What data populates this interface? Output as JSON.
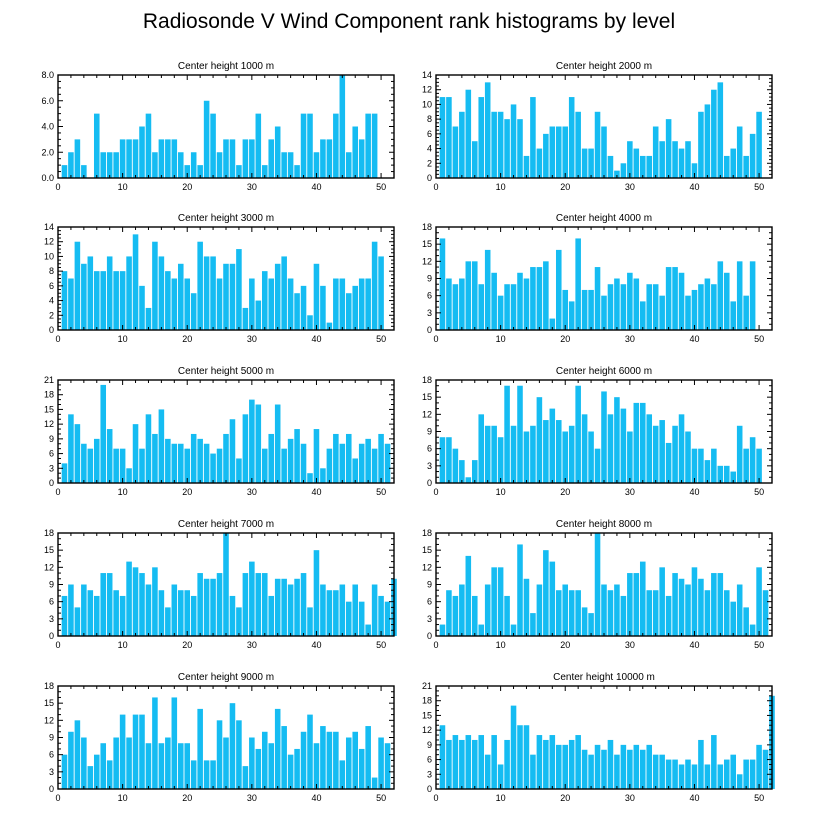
{
  "title": "Radiosonde V Wind Component rank histograms by level",
  "chart_data": [
    {
      "type": "bar",
      "title": "Center height 1000 m",
      "ylim": [
        0,
        8
      ],
      "yticks": [
        0,
        2,
        4,
        6,
        8
      ],
      "ytick_labels": [
        "0.0",
        "2.0",
        "4.0",
        "6.0",
        "8.0"
      ],
      "xlim": [
        0,
        52
      ],
      "xticks": [
        0,
        10,
        20,
        30,
        40,
        50
      ],
      "values": [
        1,
        2,
        3,
        1,
        0,
        5,
        2,
        2,
        2,
        3,
        3,
        3,
        4,
        5,
        2,
        3,
        3,
        3,
        2,
        1,
        2,
        1,
        6,
        5,
        2,
        3,
        3,
        1,
        3,
        3,
        5,
        1,
        3,
        4,
        2,
        2,
        1,
        5,
        5,
        2,
        3,
        3,
        5,
        8,
        2,
        4,
        3,
        5,
        5
      ]
    },
    {
      "type": "bar",
      "title": "Center height 2000 m",
      "ylim": [
        0,
        14
      ],
      "yticks": [
        0,
        2,
        4,
        6,
        8,
        10,
        12,
        14
      ],
      "ytick_labels": [
        "0",
        "2",
        "4",
        "6",
        "8",
        "10",
        "12",
        "14"
      ],
      "xlim": [
        0,
        52
      ],
      "xticks": [
        0,
        10,
        20,
        30,
        40,
        50
      ],
      "values": [
        11,
        11,
        7,
        9,
        12,
        5,
        11,
        13,
        9,
        9,
        8,
        10,
        8,
        3,
        11,
        4,
        6,
        7,
        7,
        7,
        11,
        9,
        4,
        4,
        9,
        7,
        3,
        1,
        2,
        5,
        4,
        3,
        3,
        7,
        5,
        8,
        5,
        4,
        5,
        2,
        9,
        10,
        12,
        13,
        3,
        4,
        7,
        3,
        6,
        9
      ]
    },
    {
      "type": "bar",
      "title": "Center height 3000 m",
      "ylim": [
        0,
        14
      ],
      "yticks": [
        0,
        2,
        4,
        6,
        8,
        10,
        12,
        14
      ],
      "ytick_labels": [
        "0",
        "2",
        "4",
        "6",
        "8",
        "10",
        "12",
        "14"
      ],
      "xlim": [
        0,
        52
      ],
      "xticks": [
        0,
        10,
        20,
        30,
        40,
        50
      ],
      "values": [
        8,
        7,
        12,
        9,
        10,
        8,
        8,
        10,
        8,
        8,
        10,
        13,
        6,
        3,
        12,
        10,
        8,
        7,
        9,
        7,
        5,
        12,
        10,
        10,
        7,
        9,
        9,
        11,
        3,
        7,
        4,
        8,
        7,
        9,
        10,
        7,
        5,
        6,
        2,
        9,
        6,
        1,
        7,
        7,
        5,
        6,
        7,
        7,
        12,
        10
      ]
    },
    {
      "type": "bar",
      "title": "Center height 4000 m",
      "ylim": [
        0,
        18
      ],
      "yticks": [
        0,
        3,
        6,
        9,
        12,
        15,
        18
      ],
      "ytick_labels": [
        "0",
        "3",
        "6",
        "9",
        "12",
        "15",
        "18"
      ],
      "xlim": [
        0,
        52
      ],
      "xticks": [
        0,
        10,
        20,
        30,
        40,
        50
      ],
      "values": [
        16,
        9,
        8,
        9,
        12,
        12,
        8,
        14,
        10,
        6,
        8,
        8,
        10,
        9,
        11,
        11,
        12,
        2,
        14,
        7,
        5,
        16,
        7,
        7,
        11,
        6,
        8,
        9,
        8,
        10,
        9,
        5,
        8,
        8,
        6,
        11,
        11,
        10,
        6,
        7,
        8,
        9,
        8,
        12,
        10,
        5,
        12,
        6,
        12
      ]
    },
    {
      "type": "bar",
      "title": "Center height 5000 m",
      "ylim": [
        0,
        21
      ],
      "yticks": [
        0,
        3,
        6,
        9,
        12,
        15,
        18,
        21
      ],
      "ytick_labels": [
        "0",
        "3",
        "6",
        "9",
        "12",
        "15",
        "18",
        "21"
      ],
      "xlim": [
        0,
        52
      ],
      "xticks": [
        0,
        10,
        20,
        30,
        40,
        50
      ],
      "values": [
        4,
        14,
        12,
        8,
        7,
        9,
        20,
        11,
        7,
        7,
        3,
        12,
        7,
        14,
        10,
        15,
        9,
        8,
        8,
        7,
        10,
        9,
        8,
        6,
        7,
        10,
        13,
        5,
        14,
        17,
        16,
        7,
        10,
        16,
        7,
        9,
        11,
        8,
        2,
        11,
        3,
        7,
        10,
        8,
        10,
        5,
        8,
        9,
        7,
        10,
        8
      ]
    },
    {
      "type": "bar",
      "title": "Center height 6000 m",
      "ylim": [
        0,
        18
      ],
      "yticks": [
        0,
        3,
        6,
        9,
        12,
        15,
        18
      ],
      "ytick_labels": [
        "0",
        "3",
        "6",
        "9",
        "12",
        "15",
        "18"
      ],
      "xlim": [
        0,
        52
      ],
      "xticks": [
        0,
        10,
        20,
        30,
        40,
        50
      ],
      "values": [
        8,
        8,
        6,
        4,
        1,
        4,
        12,
        10,
        10,
        8,
        17,
        10,
        17,
        9,
        10,
        15,
        11,
        13,
        11,
        9,
        10,
        17,
        12,
        9,
        6,
        16,
        12,
        15,
        13,
        9,
        14,
        14,
        12,
        10,
        11,
        7,
        10,
        12,
        9,
        6,
        6,
        4,
        6,
        3,
        3,
        2,
        10,
        6,
        8,
        6
      ]
    },
    {
      "type": "bar",
      "title": "Center height 7000 m",
      "ylim": [
        0,
        18
      ],
      "yticks": [
        0,
        3,
        6,
        9,
        12,
        15,
        18
      ],
      "ytick_labels": [
        "0",
        "3",
        "6",
        "9",
        "12",
        "15",
        "18"
      ],
      "xlim": [
        0,
        52
      ],
      "xticks": [
        0,
        10,
        20,
        30,
        40,
        50
      ],
      "values": [
        7,
        9,
        5,
        9,
        8,
        7,
        11,
        11,
        8,
        7,
        13,
        12,
        11,
        9,
        12,
        8,
        5,
        9,
        8,
        8,
        7,
        11,
        10,
        10,
        11,
        18,
        7,
        5,
        11,
        13,
        11,
        11,
        7,
        10,
        10,
        9,
        10,
        11,
        5,
        15,
        9,
        8,
        8,
        9,
        6,
        9,
        6,
        2,
        9,
        7,
        6,
        10
      ]
    },
    {
      "type": "bar",
      "title": "Center height 8000 m",
      "ylim": [
        0,
        18
      ],
      "yticks": [
        0,
        3,
        6,
        9,
        12,
        15,
        18
      ],
      "ytick_labels": [
        "0",
        "3",
        "6",
        "9",
        "12",
        "15",
        "18"
      ],
      "xlim": [
        0,
        52
      ],
      "xticks": [
        0,
        10,
        20,
        30,
        40,
        50
      ],
      "values": [
        2,
        8,
        7,
        9,
        14,
        7,
        2,
        9,
        12,
        12,
        7,
        2,
        16,
        10,
        4,
        9,
        15,
        13,
        8,
        9,
        8,
        8,
        5,
        4,
        18,
        9,
        8,
        9,
        7,
        11,
        11,
        13,
        8,
        8,
        12,
        7,
        11,
        10,
        9,
        12,
        10,
        8,
        11,
        11,
        8,
        6,
        9,
        5,
        2,
        12,
        8
      ]
    },
    {
      "type": "bar",
      "title": "Center height 9000 m",
      "ylim": [
        0,
        18
      ],
      "yticks": [
        0,
        3,
        6,
        9,
        12,
        15,
        18
      ],
      "ytick_labels": [
        "0",
        "3",
        "6",
        "9",
        "12",
        "15",
        "18"
      ],
      "xlim": [
        0,
        52
      ],
      "xticks": [
        0,
        10,
        20,
        30,
        40,
        50
      ],
      "values": [
        6,
        10,
        12,
        9,
        4,
        6,
        8,
        5,
        9,
        13,
        9,
        13,
        13,
        8,
        16,
        8,
        9,
        16,
        8,
        8,
        5,
        14,
        5,
        5,
        12,
        9,
        15,
        12,
        4,
        9,
        7,
        10,
        8,
        14,
        11,
        6,
        7,
        10,
        13,
        8,
        11,
        10,
        10,
        5,
        9,
        10,
        7,
        11,
        2,
        9,
        8
      ]
    },
    {
      "type": "bar",
      "title": "Center height 10000 m",
      "ylim": [
        0,
        21
      ],
      "yticks": [
        0,
        3,
        6,
        9,
        12,
        15,
        18,
        21
      ],
      "ytick_labels": [
        "0",
        "3",
        "6",
        "9",
        "12",
        "15",
        "18",
        "21"
      ],
      "xlim": [
        0,
        52
      ],
      "xticks": [
        0,
        10,
        20,
        30,
        40,
        50
      ],
      "values": [
        13,
        10,
        11,
        10,
        11,
        10,
        11,
        7,
        11,
        5,
        10,
        17,
        13,
        13,
        7,
        11,
        10,
        11,
        9,
        9,
        10,
        11,
        8,
        7,
        9,
        8,
        10,
        7,
        9,
        8,
        9,
        8,
        9,
        7,
        7,
        6,
        6,
        5,
        6,
        5,
        10,
        5,
        11,
        5,
        6,
        7,
        3,
        6,
        6,
        9,
        8,
        19
      ]
    }
  ]
}
